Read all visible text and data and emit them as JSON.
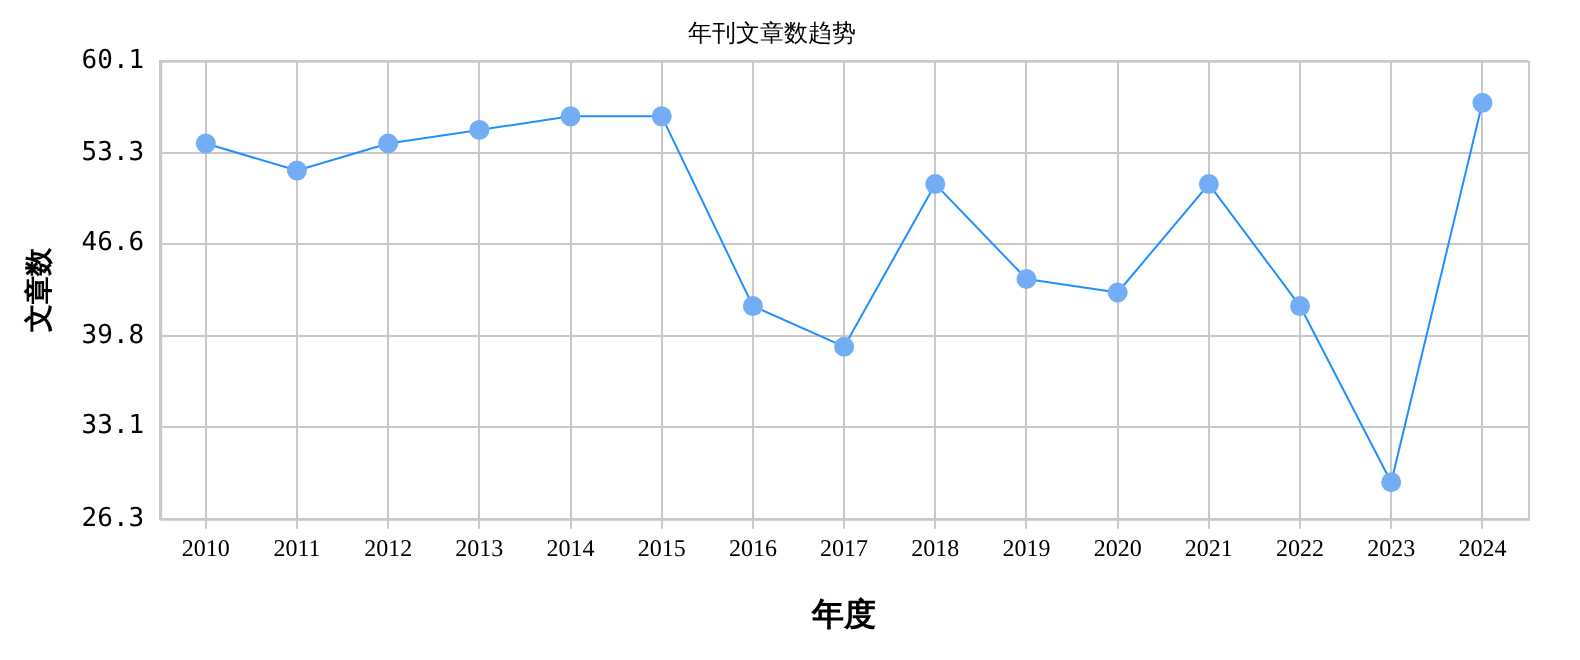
{
  "chart_data": {
    "type": "line",
    "title": "年刊文章数趋势",
    "xlabel": "年度",
    "ylabel": "文章数",
    "categories": [
      "2010",
      "2011",
      "2012",
      "2013",
      "2014",
      "2015",
      "2016",
      "2017",
      "2018",
      "2019",
      "2020",
      "2021",
      "2022",
      "2023",
      "2024"
    ],
    "series": [
      {
        "color": "#1e90ff",
        "values": [
          54,
          52,
          54,
          55,
          56,
          56,
          42,
          39,
          51,
          44,
          43,
          51,
          42,
          29,
          57
        ]
      }
    ],
    "ylim": [
      26.3,
      60.1
    ],
    "yticks": [
      26.3,
      33.1,
      39.8,
      46.6,
      53.3,
      60.1
    ],
    "grid": true,
    "legend": false,
    "marker": "circle",
    "line_style": "solid"
  }
}
